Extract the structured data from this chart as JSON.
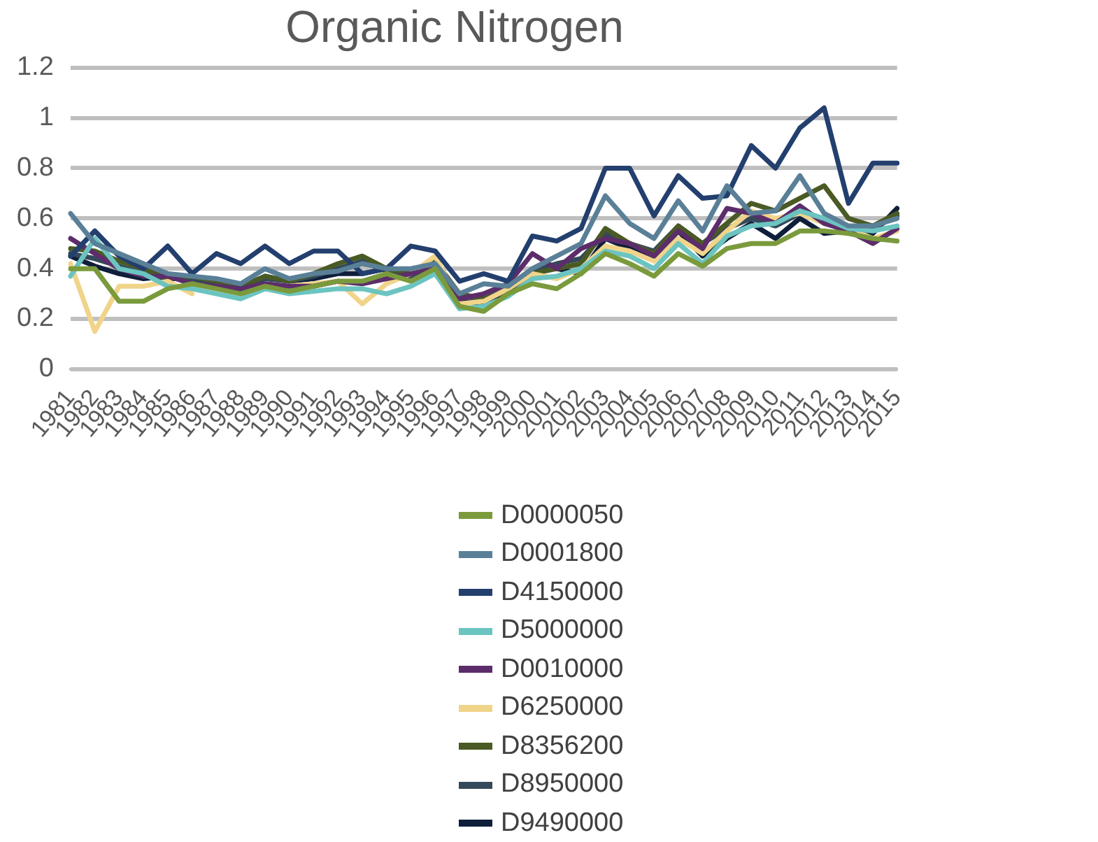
{
  "chart_data": {
    "type": "line",
    "title": "Organic Nitrogen",
    "categories": [
      "1981",
      "1982",
      "1983",
      "1984",
      "1985",
      "1986",
      "1987",
      "1988",
      "1989",
      "1990",
      "1991",
      "1992",
      "1993",
      "1994",
      "1995",
      "1996",
      "1997",
      "1998",
      "1999",
      "2000",
      "2001",
      "2002",
      "2003",
      "2004",
      "2005",
      "2006",
      "2007",
      "2008",
      "2009",
      "2010",
      "2011",
      "2012",
      "2013",
      "2014",
      "2015"
    ],
    "ylim": [
      0,
      1.2
    ],
    "yticks": [
      0,
      0.2,
      0.4,
      0.6,
      0.8,
      1,
      1.2
    ],
    "grid": "y",
    "legend": "bottom",
    "marker": "none",
    "series": [
      {
        "name": "D0000050",
        "color": "#7a9a3c",
        "values": [
          0.4,
          0.4,
          0.27,
          0.27,
          0.32,
          0.34,
          0.32,
          0.3,
          0.33,
          0.31,
          0.33,
          0.35,
          0.35,
          0.38,
          0.35,
          0.4,
          0.25,
          0.23,
          0.3,
          0.34,
          0.32,
          0.38,
          0.46,
          0.42,
          0.37,
          0.46,
          0.41,
          0.48,
          0.5,
          0.5,
          0.55,
          0.55,
          0.54,
          0.52,
          0.51
        ]
      },
      {
        "name": "D0001800",
        "color": "#5a8098",
        "values": [
          0.62,
          0.5,
          0.46,
          0.42,
          0.38,
          0.37,
          0.36,
          0.34,
          0.4,
          0.36,
          0.38,
          0.39,
          0.42,
          0.4,
          0.4,
          0.42,
          0.3,
          0.34,
          0.33,
          0.4,
          0.45,
          0.5,
          0.69,
          0.58,
          0.52,
          0.67,
          0.55,
          0.73,
          0.62,
          0.63,
          0.77,
          0.62,
          0.57,
          0.57,
          0.6
        ]
      },
      {
        "name": "D4150000",
        "color": "#233f6e",
        "values": [
          0.45,
          0.55,
          0.45,
          0.4,
          0.49,
          0.38,
          0.46,
          0.42,
          0.49,
          0.42,
          0.47,
          0.47,
          0.38,
          0.4,
          0.49,
          0.47,
          0.35,
          0.38,
          0.35,
          0.53,
          0.51,
          0.56,
          0.8,
          0.8,
          0.61,
          0.77,
          0.68,
          0.69,
          0.89,
          0.8,
          0.96,
          1.04,
          0.66,
          0.82,
          0.82
        ]
      },
      {
        "name": "D5000000",
        "color": "#6cc4c0",
        "values": [
          0.37,
          0.52,
          0.4,
          0.38,
          0.33,
          0.32,
          0.3,
          0.28,
          0.32,
          0.3,
          0.31,
          0.32,
          0.32,
          0.3,
          0.33,
          0.38,
          0.24,
          0.25,
          0.29,
          0.36,
          0.37,
          0.4,
          0.47,
          0.45,
          0.4,
          0.5,
          0.42,
          0.53,
          0.57,
          0.58,
          0.63,
          0.6,
          0.56,
          0.55,
          0.57
        ]
      },
      {
        "name": "D0010000",
        "color": "#5c2d6a",
        "values": [
          0.52,
          0.46,
          0.4,
          0.37,
          0.37,
          0.34,
          0.33,
          0.32,
          0.34,
          0.33,
          0.33,
          0.35,
          0.34,
          0.36,
          0.38,
          0.4,
          0.28,
          0.3,
          0.34,
          0.46,
          0.4,
          0.48,
          0.52,
          0.5,
          0.45,
          0.55,
          0.48,
          0.64,
          0.62,
          0.58,
          0.65,
          0.58,
          0.55,
          0.5,
          0.56
        ]
      },
      {
        "name": "D6250000",
        "color": "#f0d48a",
        "values": [
          0.42,
          0.15,
          0.33,
          0.33,
          0.35,
          0.3,
          null,
          null,
          null,
          0.33,
          0.34,
          0.35,
          0.26,
          0.34,
          0.38,
          0.45,
          0.26,
          0.27,
          0.32,
          0.38,
          0.36,
          0.4,
          0.49,
          0.47,
          0.43,
          0.52,
          0.46,
          0.55,
          0.63,
          0.6,
          0.62,
          0.58,
          0.56,
          0.52,
          0.55
        ]
      },
      {
        "name": "D8356200",
        "color": "#4a5a24",
        "values": [
          0.48,
          0.47,
          0.43,
          0.4,
          0.36,
          0.37,
          0.35,
          0.33,
          0.37,
          0.35,
          0.38,
          0.42,
          0.45,
          0.4,
          0.38,
          0.43,
          0.3,
          0.28,
          0.31,
          0.38,
          0.4,
          0.42,
          0.56,
          0.5,
          0.46,
          0.57,
          0.5,
          0.58,
          0.66,
          0.63,
          0.68,
          0.73,
          0.6,
          0.57,
          0.62
        ]
      },
      {
        "name": "D8950000",
        "color": "#34495a",
        "values": [
          0.46,
          0.44,
          0.41,
          0.38,
          0.36,
          0.36,
          0.34,
          0.32,
          0.36,
          0.35,
          0.37,
          0.4,
          0.43,
          0.39,
          0.37,
          0.4,
          0.29,
          0.28,
          0.32,
          0.39,
          0.42,
          0.44,
          0.54,
          0.5,
          0.47,
          0.57,
          0.5,
          0.56,
          0.6,
          0.57,
          0.62,
          0.6,
          0.56,
          0.56,
          0.61
        ]
      },
      {
        "name": "D9490000",
        "color": "#0f1f3a",
        "values": [
          0.45,
          0.41,
          0.38,
          0.36,
          0.37,
          0.36,
          0.34,
          0.31,
          0.37,
          0.35,
          0.36,
          0.38,
          0.38,
          0.4,
          0.38,
          0.38,
          0.27,
          0.26,
          0.31,
          0.4,
          0.4,
          0.38,
          0.52,
          0.48,
          0.44,
          0.55,
          0.45,
          0.52,
          0.58,
          0.52,
          0.6,
          0.54,
          0.55,
          0.54,
          0.64
        ]
      }
    ]
  }
}
